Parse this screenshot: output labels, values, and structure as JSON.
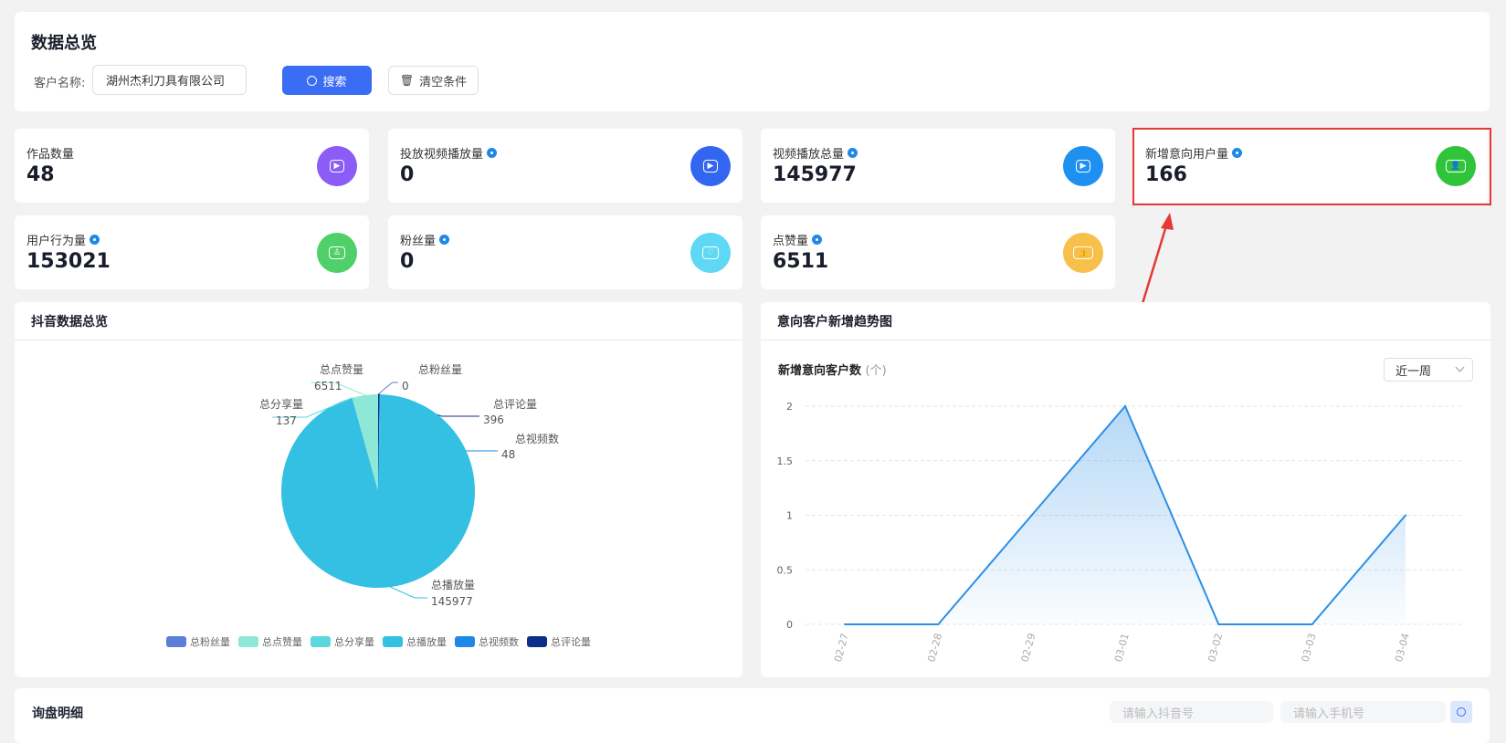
{
  "header": {
    "title": "数据总览",
    "customer_label": "客户名称:",
    "customer_value": "湖州杰利刀具有限公司",
    "search_label": "搜索",
    "clear_label": "清空条件"
  },
  "stats": [
    {
      "label": "作品数量",
      "value": "48",
      "info": false,
      "icon": "video-camera-icon",
      "color": "#8b5cf6"
    },
    {
      "label": "投放视频播放量",
      "value": "0",
      "info": true,
      "icon": "play-square-icon",
      "color": "#3366f0"
    },
    {
      "label": "视频播放总量",
      "value": "145977",
      "info": true,
      "icon": "play-circle-icon",
      "color": "#1e90f0"
    },
    {
      "label": "新增意向用户量",
      "value": "166",
      "info": true,
      "icon": "user-icon",
      "color": "#2fc43a"
    },
    {
      "label": "用户行为量",
      "value": "153021",
      "info": true,
      "icon": "user-action-icon",
      "color": "#4fd068"
    },
    {
      "label": "粉丝量",
      "value": "0",
      "info": true,
      "icon": "fan-user-icon",
      "color": "#5ed8f5"
    },
    {
      "label": "点赞量",
      "value": "6511",
      "info": true,
      "icon": "thumbs-up-icon",
      "color": "#f7c04a"
    }
  ],
  "pie_panel": {
    "title": "抖音数据总览"
  },
  "line_panel": {
    "title": "意向客户新增趋势图",
    "chart_title": "新增意向客户数",
    "unit": "(个)",
    "range_select": "近一周"
  },
  "detail_panel": {
    "title": "询盘明细",
    "douyin_placeholder": "请输入抖音号",
    "phone_placeholder": "请输入手机号"
  },
  "chart_data": [
    {
      "type": "pie",
      "legend_position": "bottom",
      "slices": [
        {
          "name": "总粉丝量",
          "value": 0,
          "color": "#5b7fd6"
        },
        {
          "name": "总评论量",
          "value": 396,
          "color": "#0d2f8a"
        },
        {
          "name": "总视频数",
          "value": 48,
          "color": "#1e88e5"
        },
        {
          "name": "总播放量",
          "value": 145977,
          "color": "#33c0e3"
        },
        {
          "name": "总分享量",
          "value": 137,
          "color": "#5ad8de"
        },
        {
          "name": "总点赞量",
          "value": 6511,
          "color": "#8ee8d8"
        }
      ],
      "legend": [
        "总粉丝量",
        "总点赞量",
        "总分享量",
        "总播放量",
        "总视频数",
        "总评论量"
      ]
    },
    {
      "type": "area",
      "title": "新增意向客户数",
      "x": [
        "02-27",
        "02-28",
        "02-29",
        "03-01",
        "03-02",
        "03-03",
        "03-04"
      ],
      "values": [
        0,
        0,
        1,
        2,
        0,
        0,
        1
      ],
      "ylim": [
        0,
        2
      ],
      "yticks": [
        "0",
        "0.5",
        "1",
        "1.5",
        "2"
      ],
      "grid": true,
      "color": "#2b8fe6"
    }
  ]
}
